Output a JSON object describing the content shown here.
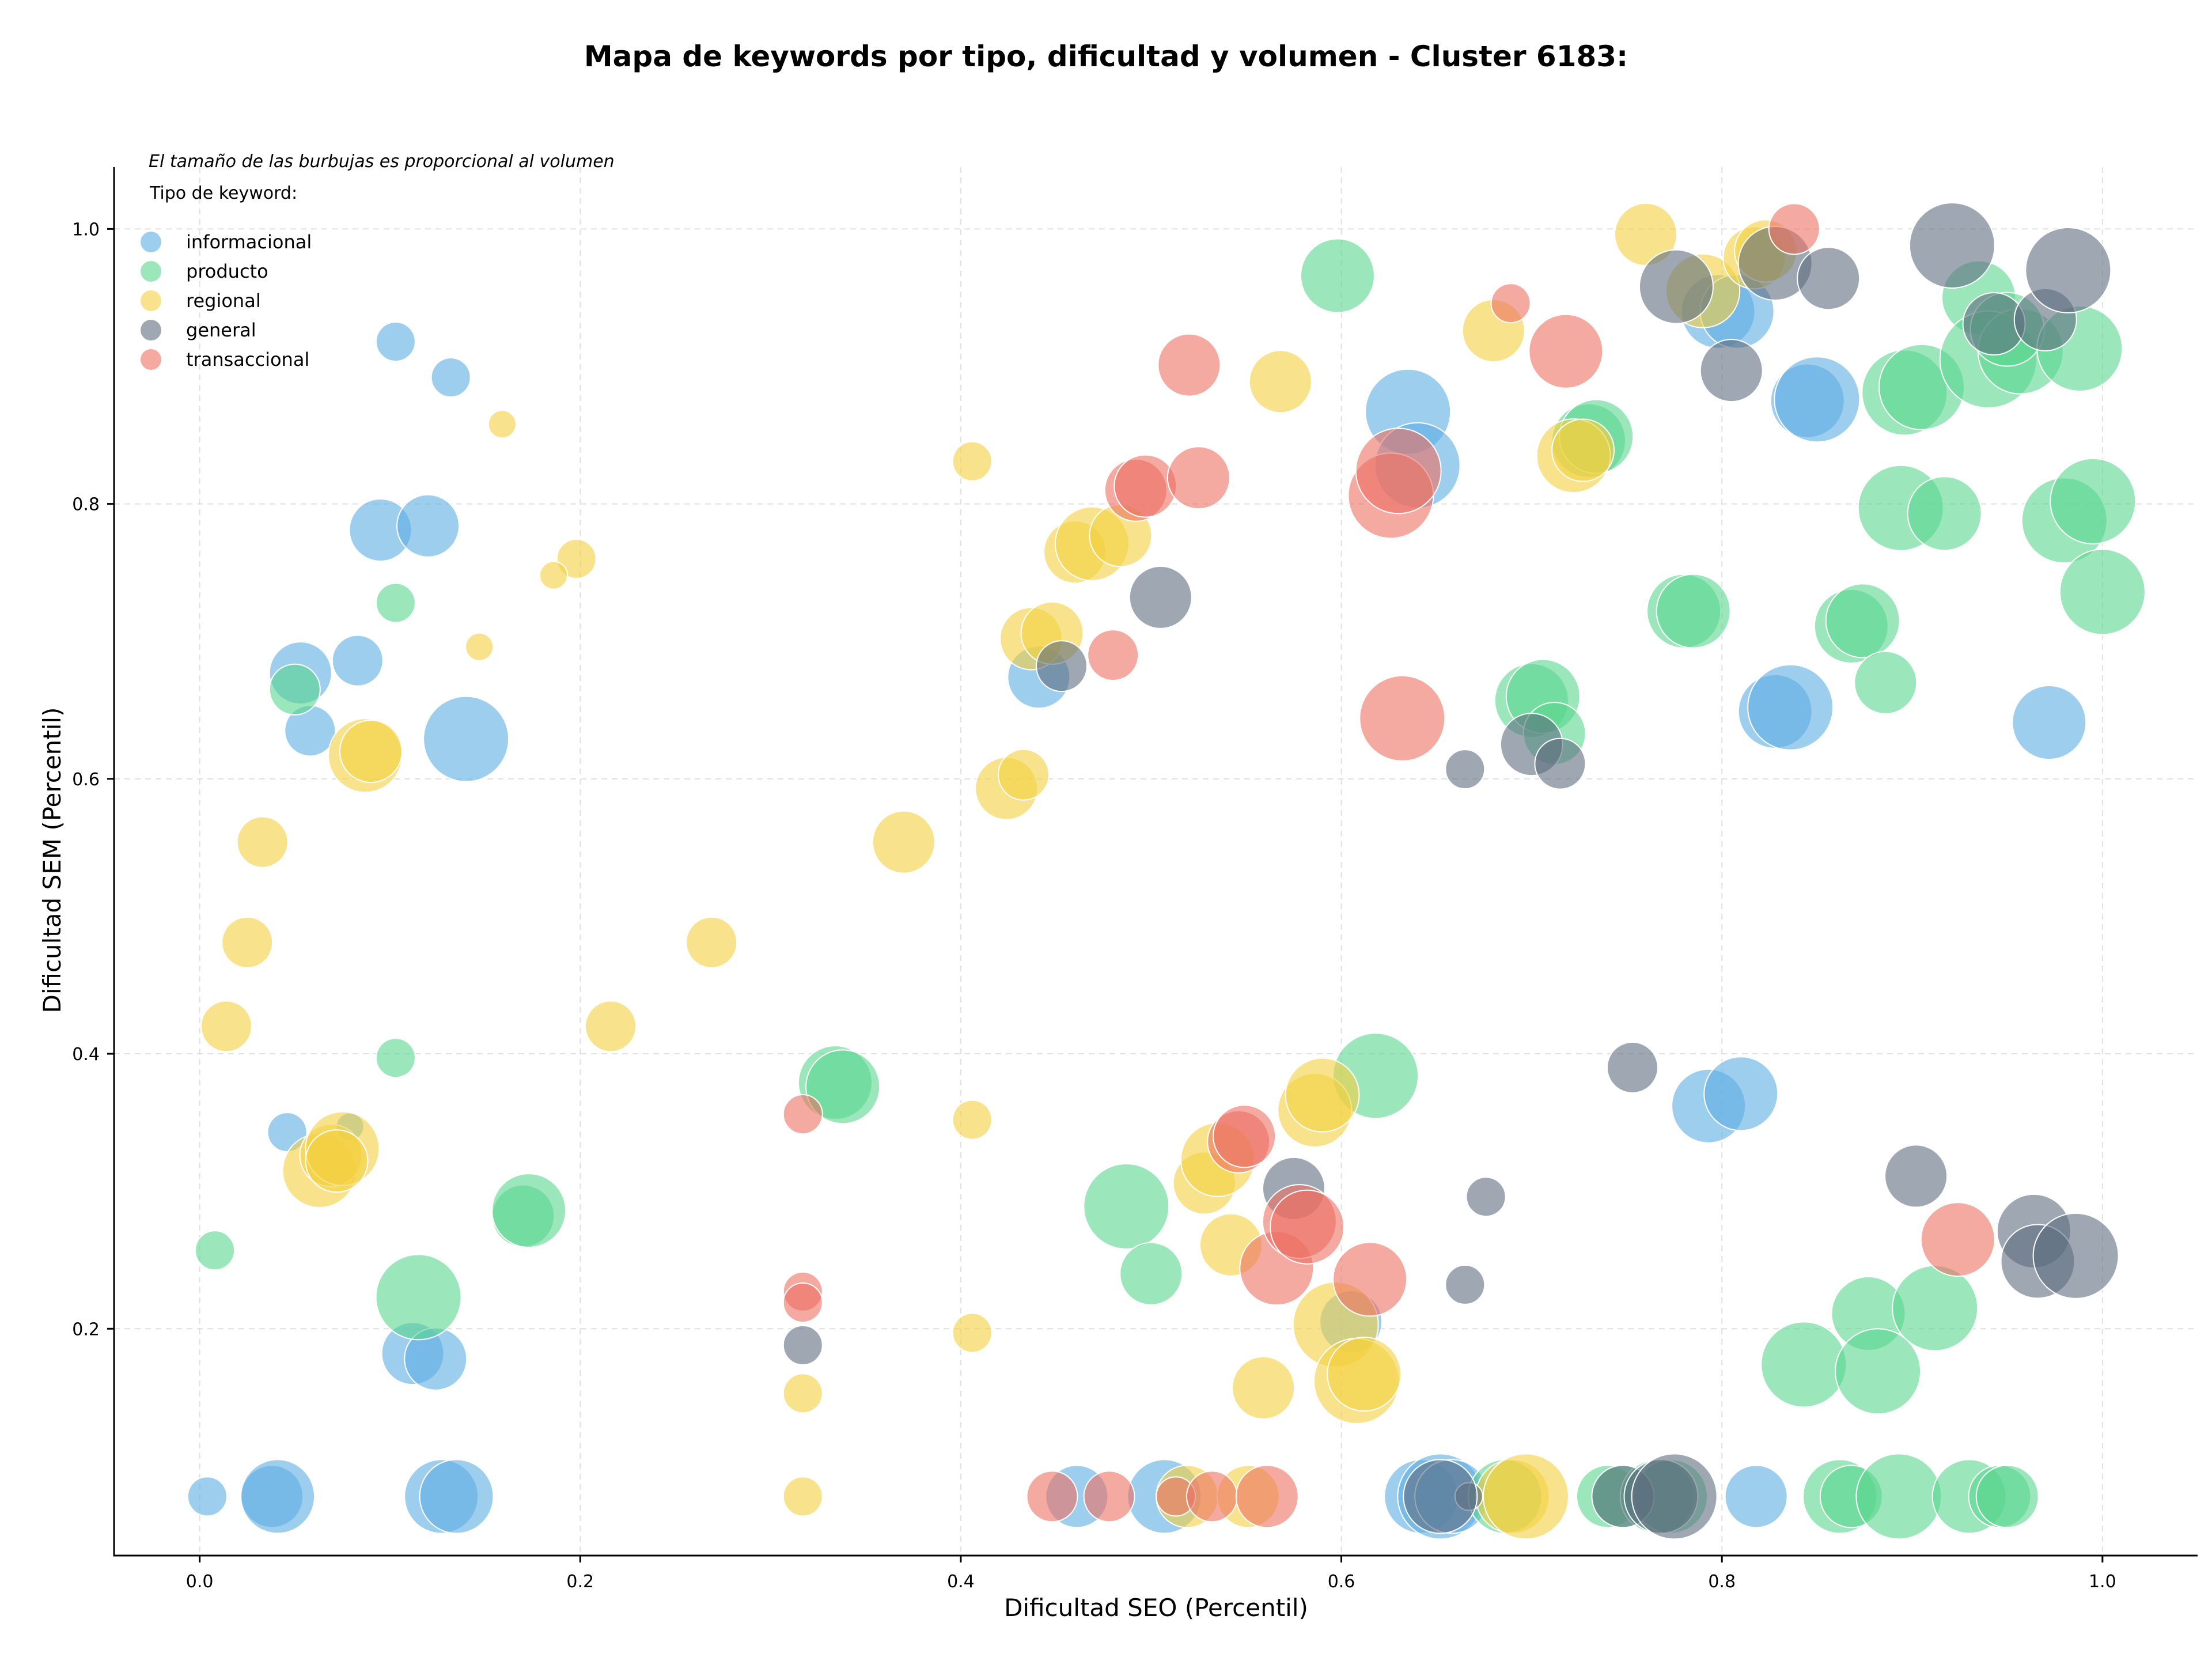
{
  "chart_data": {
    "type": "scatter",
    "title": "Mapa de keywords por tipo, dificultad y volumen - Cluster 6183:",
    "xlabel": "Dificultad SEO (Percentil)",
    "ylabel": "Dificultad SEM (Percentil)",
    "xlim": [
      -0.045,
      1.05
    ],
    "ylim": [
      0.035,
      1.045
    ],
    "xticks": [
      "0.0",
      "0.2",
      "0.4",
      "0.6",
      "0.8",
      "1.0"
    ],
    "yticks": [
      "0.2",
      "0.4",
      "0.6",
      "0.8",
      "1.0"
    ],
    "grid": true,
    "legend_placement": "top-left",
    "legend_note": "El tamaño de las burbujas es proporcional al volumen",
    "legend_title": "Tipo de keyword:",
    "size_encoding": "volumen (bubble area, relative)",
    "series": [
      {
        "name": "informacional",
        "color": "#5DADE2",
        "points": [
          [
            0.103,
            0.918,
            2
          ],
          [
            0.132,
            0.892,
            2
          ],
          [
            0.095,
            0.781,
            4
          ],
          [
            0.12,
            0.784,
            4
          ],
          [
            0.083,
            0.686,
            3
          ],
          [
            0.053,
            0.677,
            4
          ],
          [
            0.058,
            0.635,
            3
          ],
          [
            0.14,
            0.629,
            6
          ],
          [
            0.046,
            0.343,
            2
          ],
          [
            0.079,
            0.347,
            1
          ],
          [
            0.112,
            0.182,
            4
          ],
          [
            0.124,
            0.178,
            4
          ],
          [
            0.004,
            0.078,
            2
          ],
          [
            0.038,
            0.078,
            4
          ],
          [
            0.041,
            0.078,
            5
          ],
          [
            0.127,
            0.078,
            5
          ],
          [
            0.135,
            0.078,
            5
          ],
          [
            0.441,
            0.674,
            4
          ],
          [
            0.635,
            0.867,
            6
          ],
          [
            0.64,
            0.828,
            6
          ],
          [
            0.798,
            0.94,
            5
          ],
          [
            0.808,
            0.94,
            5
          ],
          [
            0.845,
            0.875,
            5
          ],
          [
            0.85,
            0.876,
            6
          ],
          [
            0.828,
            0.649,
            5
          ],
          [
            0.836,
            0.652,
            6
          ],
          [
            0.793,
            0.362,
            5
          ],
          [
            0.81,
            0.371,
            5
          ],
          [
            0.605,
            0.205,
            4
          ],
          [
            0.972,
            0.641,
            5
          ],
          [
            0.461,
            0.078,
            4
          ],
          [
            0.507,
            0.078,
            5
          ],
          [
            0.642,
            0.078,
            5
          ],
          [
            0.652,
            0.078,
            6
          ],
          [
            0.658,
            0.078,
            5
          ],
          [
            0.818,
            0.078,
            4
          ]
        ]
      },
      {
        "name": "producto",
        "color": "#58D68D",
        "points": [
          [
            0.103,
            0.728,
            2
          ],
          [
            0.05,
            0.665,
            3
          ],
          [
            0.103,
            0.397,
            2
          ],
          [
            0.008,
            0.257,
            2
          ],
          [
            0.115,
            0.223,
            6
          ],
          [
            0.17,
            0.282,
            4
          ],
          [
            0.173,
            0.286,
            5
          ],
          [
            0.334,
            0.379,
            5
          ],
          [
            0.338,
            0.376,
            5
          ],
          [
            0.598,
            0.966,
            5
          ],
          [
            0.618,
            0.384,
            6
          ],
          [
            0.487,
            0.289,
            6
          ],
          [
            0.5,
            0.24,
            4
          ],
          [
            0.7,
            0.657,
            5
          ],
          [
            0.706,
            0.66,
            5
          ],
          [
            0.712,
            0.633,
            4
          ],
          [
            0.73,
            0.846,
            5
          ],
          [
            0.734,
            0.849,
            5
          ],
          [
            0.78,
            0.722,
            5
          ],
          [
            0.785,
            0.722,
            5
          ],
          [
            0.868,
            0.711,
            5
          ],
          [
            0.874,
            0.715,
            5
          ],
          [
            0.886,
            0.67,
            4
          ],
          [
            0.894,
            0.797,
            6
          ],
          [
            0.917,
            0.793,
            5
          ],
          [
            0.896,
            0.881,
            6
          ],
          [
            0.905,
            0.885,
            6
          ],
          [
            0.935,
            0.95,
            5
          ],
          [
            0.94,
            0.905,
            7
          ],
          [
            0.957,
            0.911,
            6
          ],
          [
            0.95,
            0.927,
            5
          ],
          [
            0.988,
            0.913,
            6
          ],
          [
            0.98,
            0.788,
            6
          ],
          [
            0.995,
            0.802,
            6
          ],
          [
            1.0,
            0.736,
            6
          ],
          [
            0.877,
            0.211,
            5
          ],
          [
            0.912,
            0.215,
            6
          ],
          [
            0.843,
            0.174,
            6
          ],
          [
            0.882,
            0.169,
            6
          ],
          [
            0.686,
            0.078,
            5
          ],
          [
            0.74,
            0.078,
            4
          ],
          [
            0.748,
            0.078,
            4
          ],
          [
            0.766,
            0.078,
            5
          ],
          [
            0.773,
            0.078,
            5
          ],
          [
            0.862,
            0.078,
            5
          ],
          [
            0.868,
            0.078,
            4
          ],
          [
            0.893,
            0.078,
            6
          ],
          [
            0.93,
            0.078,
            5
          ],
          [
            0.946,
            0.078,
            4
          ],
          [
            0.95,
            0.078,
            4
          ]
        ]
      },
      {
        "name": "regional",
        "color": "#F4D03F",
        "points": [
          [
            0.159,
            0.858,
            1
          ],
          [
            0.198,
            0.76,
            2
          ],
          [
            0.186,
            0.748,
            1
          ],
          [
            0.147,
            0.696,
            1
          ],
          [
            0.087,
            0.617,
            5
          ],
          [
            0.09,
            0.62,
            4
          ],
          [
            0.033,
            0.554,
            3
          ],
          [
            0.025,
            0.481,
            3
          ],
          [
            0.014,
            0.42,
            3
          ],
          [
            0.063,
            0.315,
            5
          ],
          [
            0.069,
            0.326,
            4
          ],
          [
            0.075,
            0.331,
            5
          ],
          [
            0.072,
            0.322,
            4
          ],
          [
            0.216,
            0.42,
            3
          ],
          [
            0.269,
            0.481,
            3
          ],
          [
            0.37,
            0.554,
            4
          ],
          [
            0.406,
            0.831,
            2
          ],
          [
            0.424,
            0.593,
            4
          ],
          [
            0.433,
            0.603,
            3
          ],
          [
            0.437,
            0.702,
            4
          ],
          [
            0.448,
            0.706,
            4
          ],
          [
            0.46,
            0.765,
            4
          ],
          [
            0.469,
            0.771,
            5
          ],
          [
            0.484,
            0.777,
            4
          ],
          [
            0.406,
            0.352,
            2
          ],
          [
            0.406,
            0.197,
            2
          ],
          [
            0.317,
            0.153,
            2
          ],
          [
            0.317,
            0.078,
            2
          ],
          [
            0.568,
            0.889,
            4
          ],
          [
            0.68,
            0.926,
            4
          ],
          [
            0.722,
            0.835,
            5
          ],
          [
            0.727,
            0.839,
            4
          ],
          [
            0.76,
            0.996,
            4
          ],
          [
            0.79,
            0.955,
            5
          ],
          [
            0.817,
            0.979,
            4
          ],
          [
            0.823,
            0.984,
            4
          ],
          [
            0.528,
            0.306,
            4
          ],
          [
            0.535,
            0.323,
            5
          ],
          [
            0.542,
            0.261,
            4
          ],
          [
            0.559,
            0.157,
            4
          ],
          [
            0.586,
            0.359,
            5
          ],
          [
            0.59,
            0.37,
            5
          ],
          [
            0.597,
            0.203,
            6
          ],
          [
            0.608,
            0.162,
            6
          ],
          [
            0.612,
            0.167,
            5
          ],
          [
            0.519,
            0.078,
            4
          ],
          [
            0.551,
            0.078,
            4
          ],
          [
            0.69,
            0.078,
            5
          ],
          [
            0.697,
            0.078,
            6
          ]
        ]
      },
      {
        "name": "general",
        "color": "#5D6D7E",
        "points": [
          [
            0.317,
            0.188,
            2
          ],
          [
            0.453,
            0.682,
            3
          ],
          [
            0.505,
            0.732,
            4
          ],
          [
            0.575,
            0.302,
            4
          ],
          [
            0.665,
            0.607,
            2
          ],
          [
            0.676,
            0.296,
            2
          ],
          [
            0.665,
            0.232,
            2
          ],
          [
            0.667,
            0.078,
            1
          ],
          [
            0.7,
            0.625,
            4
          ],
          [
            0.715,
            0.611,
            3
          ],
          [
            0.753,
            0.39,
            3
          ],
          [
            0.776,
            0.958,
            5
          ],
          [
            0.805,
            0.897,
            4
          ],
          [
            0.828,
            0.975,
            5
          ],
          [
            0.856,
            0.964,
            4
          ],
          [
            0.921,
            0.988,
            6
          ],
          [
            0.943,
            0.931,
            4
          ],
          [
            0.97,
            0.934,
            4
          ],
          [
            0.982,
            0.97,
            6
          ],
          [
            0.902,
            0.311,
            4
          ],
          [
            0.964,
            0.271,
            5
          ],
          [
            0.966,
            0.249,
            5
          ],
          [
            0.986,
            0.253,
            6
          ],
          [
            0.748,
            0.078,
            4
          ],
          [
            0.768,
            0.078,
            5
          ],
          [
            0.775,
            0.078,
            6
          ],
          [
            0.652,
            0.078,
            5
          ]
        ]
      },
      {
        "name": "transaccional",
        "color": "#EC7063",
        "points": [
          [
            0.317,
            0.356,
            2
          ],
          [
            0.317,
            0.227,
            2
          ],
          [
            0.317,
            0.219,
            2
          ],
          [
            0.48,
            0.69,
            3
          ],
          [
            0.492,
            0.81,
            4
          ],
          [
            0.497,
            0.813,
            4
          ],
          [
            0.52,
            0.901,
            4
          ],
          [
            0.525,
            0.819,
            4
          ],
          [
            0.546,
            0.336,
            4
          ],
          [
            0.549,
            0.34,
            4
          ],
          [
            0.566,
            0.244,
            5
          ],
          [
            0.578,
            0.278,
            5
          ],
          [
            0.582,
            0.274,
            5
          ],
          [
            0.615,
            0.236,
            5
          ],
          [
            0.626,
            0.806,
            6
          ],
          [
            0.63,
            0.824,
            6
          ],
          [
            0.632,
            0.644,
            6
          ],
          [
            0.689,
            0.946,
            2
          ],
          [
            0.718,
            0.911,
            5
          ],
          [
            0.838,
            1.0,
            3
          ],
          [
            0.924,
            0.265,
            5
          ],
          [
            0.448,
            0.078,
            3
          ],
          [
            0.478,
            0.078,
            3
          ],
          [
            0.513,
            0.078,
            2
          ],
          [
            0.532,
            0.078,
            3
          ],
          [
            0.561,
            0.078,
            4
          ]
        ]
      }
    ]
  }
}
